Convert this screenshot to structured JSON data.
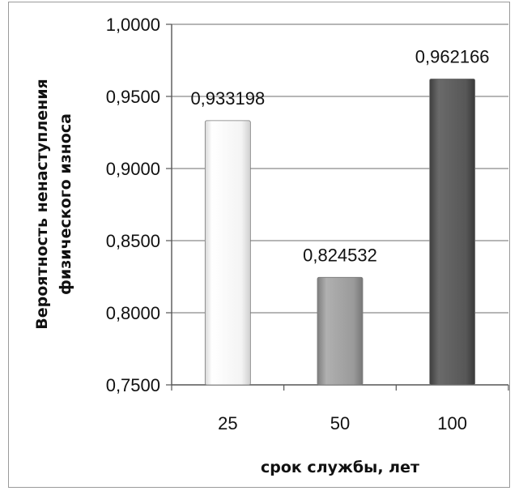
{
  "chart_data": {
    "type": "bar",
    "categories": [
      "25",
      "50",
      "100"
    ],
    "values": [
      0.933198,
      0.824532,
      0.962166
    ],
    "data_labels": [
      "0,933198",
      "0,824532",
      "0,962166"
    ],
    "xlabel": "срок службы, лет",
    "ylabel_lines": [
      "Вероятность ненаступления",
      "физического износа"
    ],
    "ylim": [
      0.75,
      1.0
    ],
    "yticks": [
      1.0,
      0.95,
      0.9,
      0.85,
      0.8,
      0.75
    ],
    "ytick_labels": [
      "1,0000",
      "0,9500",
      "0,9000",
      "0,8500",
      "0,8000",
      "0,7500"
    ],
    "bar_colors": [
      "#f7f7f7",
      "#9c9c9c",
      "#5a5a5a"
    ],
    "grid": true,
    "legend": "none"
  }
}
